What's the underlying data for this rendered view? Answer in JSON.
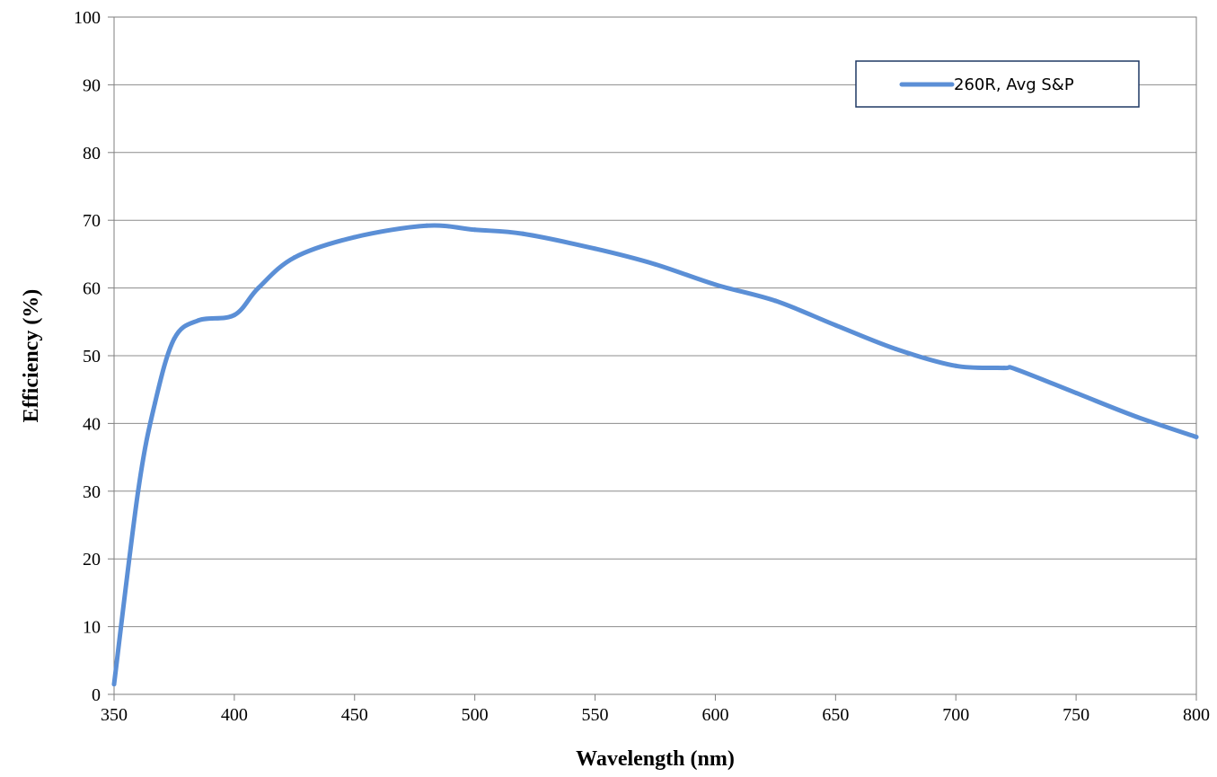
{
  "chart_data": {
    "type": "line",
    "title": "",
    "xlabel": "Wavelength (nm)",
    "ylabel": "Efficiency (%)",
    "xlim": [
      350,
      800
    ],
    "ylim": [
      0,
      100
    ],
    "xticks": [
      350,
      400,
      450,
      500,
      550,
      600,
      650,
      700,
      750,
      800
    ],
    "yticks": [
      0,
      10,
      20,
      30,
      40,
      50,
      60,
      70,
      80,
      90,
      100
    ],
    "grid": "horizontal",
    "legend_position": "top-right",
    "series": [
      {
        "name": "260R, Avg S&P",
        "color": "#5b8fd6",
        "x": [
          350,
          360,
          367,
          375,
          385,
          400,
          410,
          425,
          450,
          480,
          500,
          520,
          550,
          575,
          600,
          625,
          650,
          675,
          700,
          720,
          725,
          750,
          775,
          800
        ],
        "y": [
          1.5,
          30,
          43,
          52.5,
          55.2,
          56,
          60,
          64.5,
          67.5,
          69.2,
          68.6,
          68.0,
          65.8,
          63.5,
          60.5,
          58.1,
          54.5,
          51.0,
          48.5,
          48.2,
          48,
          44.5,
          41,
          38
        ]
      }
    ]
  }
}
